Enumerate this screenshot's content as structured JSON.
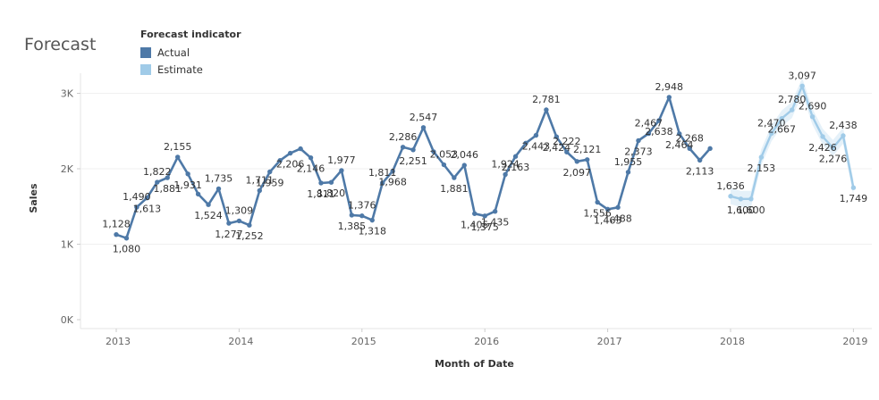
{
  "title": "Forecast",
  "legend": {
    "title": "Forecast indicator",
    "items": [
      {
        "label": "Actual",
        "color": "#4e79a7"
      },
      {
        "label": "Estimate",
        "color": "#a0cbe8"
      }
    ]
  },
  "chart_data": {
    "type": "line",
    "xlabel": "Month of Date",
    "ylabel": "Sales",
    "x_ticks": [
      "2013",
      "2014",
      "2015",
      "2016",
      "2017",
      "2018",
      "2019"
    ],
    "y_ticks": [
      "0K",
      "1K",
      "2K",
      "3K"
    ],
    "ylim": [
      0,
      3400
    ],
    "grid": true,
    "legend_position": "top-left",
    "series": [
      {
        "name": "Actual",
        "color": "#4e79a7",
        "start": "2013-01",
        "values": [
          1128,
          1080,
          1490,
          1613,
          1822,
          1881,
          2155,
          1931,
          1664,
          1524,
          1735,
          1277,
          1309,
          1252,
          1711,
          1959,
          2110,
          2206,
          2265,
          2146,
          1811,
          1820,
          1977,
          1385,
          1376,
          1318,
          1811,
          1968,
          2286,
          2251,
          2547,
          2226,
          2053,
          1881,
          2046,
          1405,
          1375,
          1435,
          1924,
          2163,
          2340,
          2443,
          2781,
          2424,
          2222,
          2097,
          2121,
          1556,
          1463,
          1488,
          1955,
          2373,
          2467,
          2638,
          2948,
          2464,
          2268,
          2113,
          2268
        ],
        "labels": {
          "0": "1,128",
          "1": "1,080",
          "2": "1,490",
          "3": "1,613",
          "4": "1,822",
          "5": "1,881",
          "6": "2,155",
          "7": "1,931",
          "9": "1,524",
          "10": "1,735",
          "11": "1,277",
          "12": "1,309",
          "13": "1,252",
          "14": "1,711",
          "15": "1,959",
          "17": "2,206",
          "19": "2,146",
          "20": "1,811",
          "21": "1,820",
          "22": "1,977",
          "23": "1,385",
          "24": "1,376",
          "25": "1,318",
          "26": "1,811",
          "27": "1,968",
          "28": "2,286",
          "29": "2,251",
          "30": "2,547",
          "32": "2,053",
          "33": "1,881",
          "34": "2,046",
          "35": "1,405",
          "36": "1,375",
          "37": "1,435",
          "38": "1,924",
          "39": "2,163",
          "41": "2,443",
          "42": "2,781",
          "43": "2,424",
          "44": "2,222",
          "45": "2,097",
          "46": "2,121",
          "47": "1,556",
          "48": "1,463",
          "49": "1,488",
          "50": "1,955",
          "51": "2,373",
          "52": "2,467",
          "53": "2,638",
          "54": "2,948",
          "55": "2,464",
          "56": "2,268",
          "57": "2,113"
        }
      },
      {
        "name": "Estimate",
        "color": "#a0cbe8",
        "start": "2018-01",
        "values": [
          1636,
          1600,
          1600,
          2153,
          2470,
          2667,
          2780,
          3097,
          2690,
          2426,
          2276,
          2438,
          1749
        ],
        "labels": {
          "0": "1,636",
          "1": "1,600",
          "2": "1,600",
          "3": "2,153",
          "4": "2,470",
          "5": "2,667",
          "6": "2,780",
          "7": "3,097",
          "8": "2,690",
          "9": "2,426",
          "10": "2,276",
          "11": "2,438",
          "12": "1,749"
        }
      }
    ]
  }
}
